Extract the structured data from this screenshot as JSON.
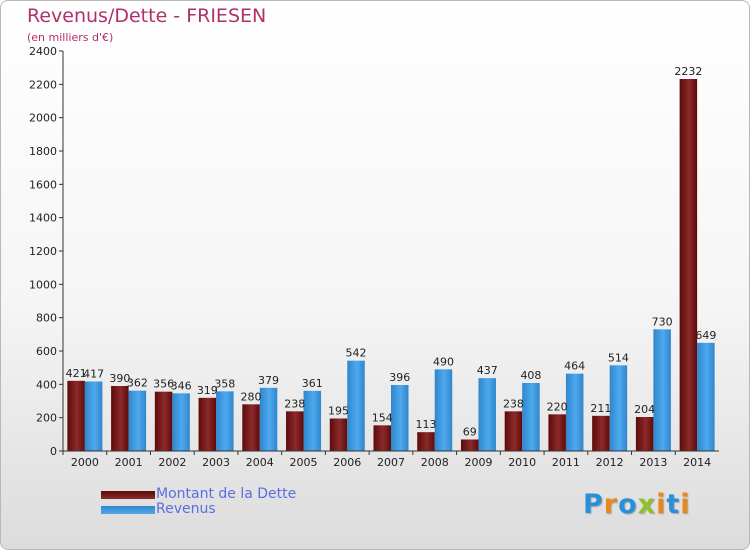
{
  "title": "Revenus/Dette - FRIESEN",
  "subtitle": "(en milliers d'€)",
  "chart_data": {
    "type": "bar",
    "title": "Revenus/Dette - FRIESEN",
    "subtitle": "(en milliers d'€)",
    "categories": [
      "2000",
      "2001",
      "2002",
      "2003",
      "2004",
      "2005",
      "2006",
      "2007",
      "2008",
      "2009",
      "2010",
      "2011",
      "2012",
      "2013",
      "2014"
    ],
    "series": [
      {
        "name": "Montant de la Dette",
        "color": "#7a1a1a",
        "values": [
          421,
          390,
          356,
          319,
          280,
          238,
          195,
          154,
          113,
          69,
          238,
          220,
          211,
          204,
          2232
        ]
      },
      {
        "name": "Revenus",
        "color": "#3d9be0",
        "values": [
          417,
          362,
          346,
          358,
          379,
          361,
          542,
          396,
          490,
          437,
          408,
          464,
          514,
          730,
          649
        ]
      }
    ],
    "ylim": [
      0,
      2400
    ],
    "yticks": [
      0,
      200,
      400,
      600,
      800,
      1000,
      1200,
      1400,
      1600,
      1800,
      2000,
      2200,
      2400
    ],
    "grid": false,
    "legend_position": "bottom-left"
  },
  "legend": {
    "items": [
      {
        "label": "Montant de la Dette",
        "color": "#7a1a1a"
      },
      {
        "label": "Revenus",
        "color": "#3d9be0"
      }
    ]
  },
  "logo": {
    "text": "Proxiti",
    "letters": [
      "P",
      "r",
      "o",
      "x",
      "i",
      "t",
      "i"
    ],
    "colors": [
      "#2a8fd8",
      "#e8871a",
      "#2a8fd8",
      "#8fbf2a",
      "#e8871a",
      "#2a8fd8",
      "#e8871a"
    ]
  }
}
